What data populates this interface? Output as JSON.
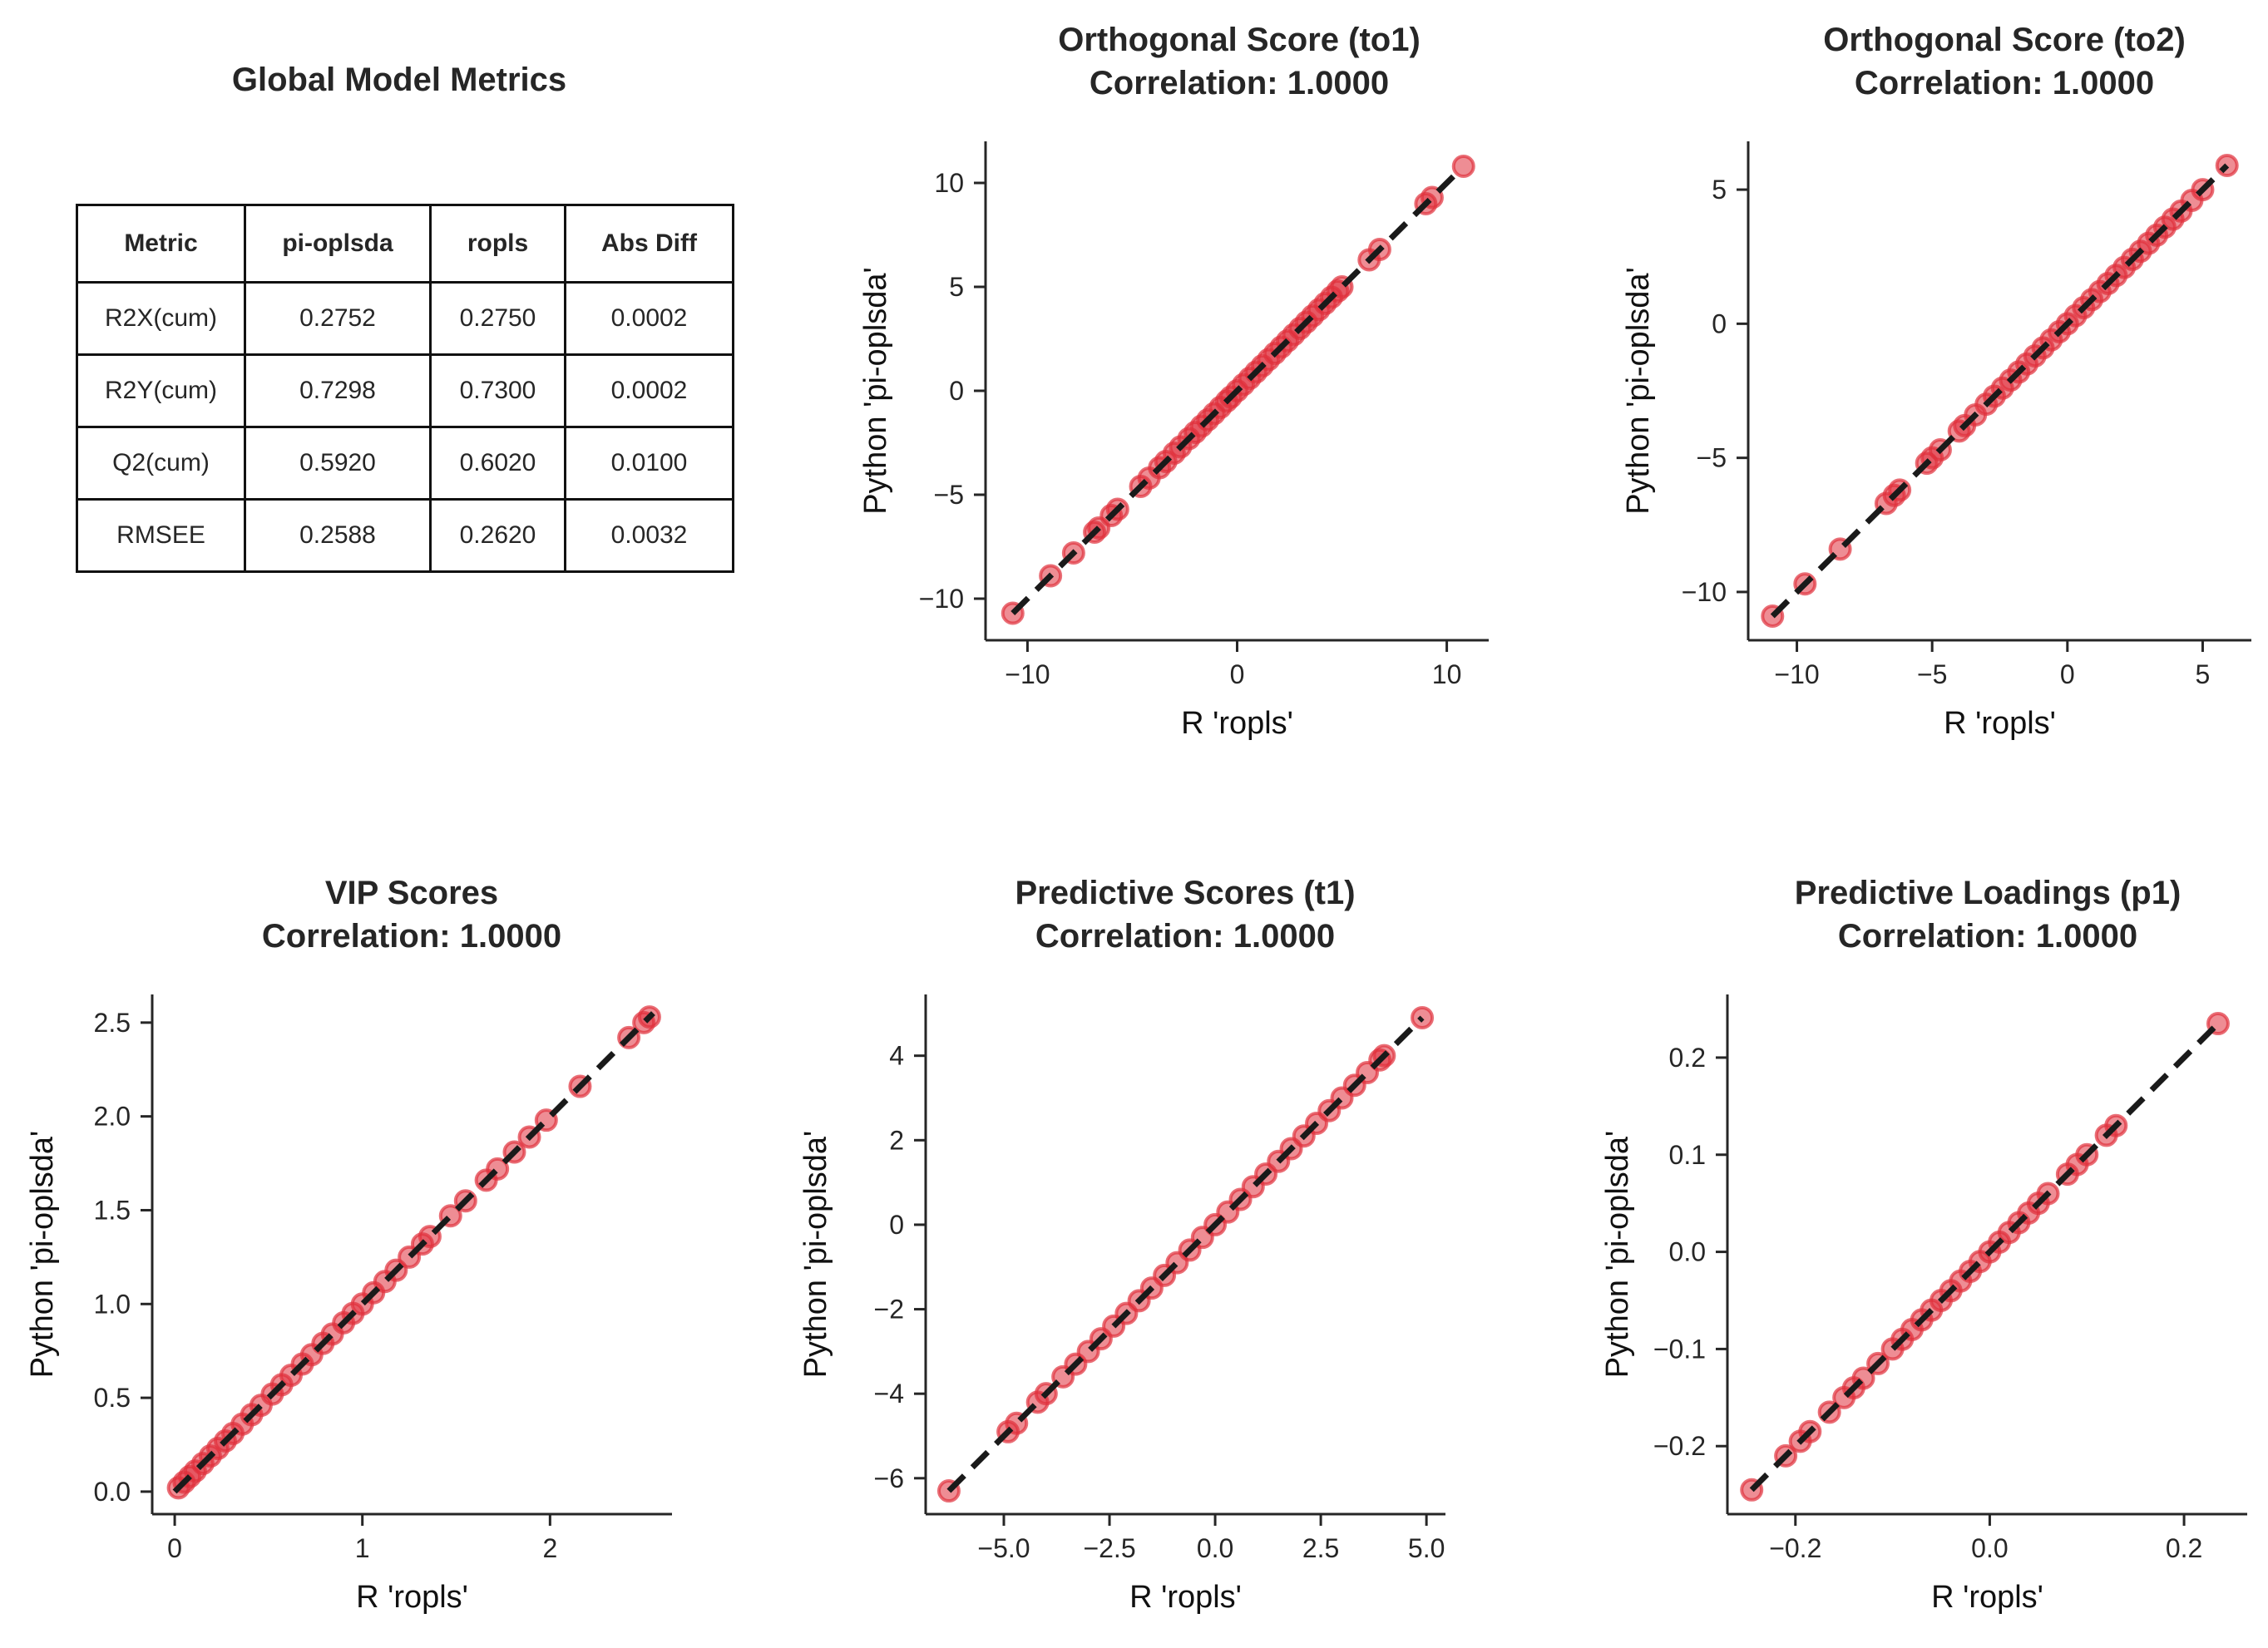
{
  "metrics_table": {
    "title": "Global Model Metrics",
    "columns": [
      "Metric",
      "pi-oplsda",
      "ropls",
      "Abs Diff"
    ],
    "rows": [
      [
        "R2X(cum)",
        "0.2752",
        "0.2750",
        "0.0002"
      ],
      [
        "R2Y(cum)",
        "0.7298",
        "0.7300",
        "0.0002"
      ],
      [
        "Q2(cum)",
        "0.5920",
        "0.6020",
        "0.0100"
      ],
      [
        "RMSEE",
        "0.2588",
        "0.2620",
        "0.0032"
      ]
    ]
  },
  "colors": {
    "points": "#e0303c",
    "identity_line": "#1a1a1a",
    "axes": "#262626"
  },
  "chart_data": [
    {
      "type": "scatter",
      "title": "Orthogonal Score (to1)\nCorrelation: 1.0000",
      "xlabel": "R 'ropls'",
      "ylabel": "Python 'pi-oplsda'",
      "xlim": [
        -12,
        12
      ],
      "ylim": [
        -12,
        12
      ],
      "xticks": [
        -10,
        0,
        10
      ],
      "yticks": [
        -10,
        -5,
        0,
        5,
        10
      ],
      "tick_labels_x": [
        "−10",
        "0",
        "10"
      ],
      "tick_labels_y": [
        "−10",
        "−5",
        "0",
        "5",
        "10"
      ],
      "identity_line": [
        -10.7,
        10.7
      ],
      "points": [
        -10.7,
        -8.9,
        -7.8,
        -6.8,
        -6.6,
        -6.0,
        -5.7,
        -4.6,
        -4.2,
        -3.7,
        -3.4,
        -3.0,
        -2.7,
        -2.3,
        -2.0,
        -1.7,
        -1.4,
        -1.1,
        -0.8,
        -0.5,
        -0.3,
        0.0,
        0.3,
        0.6,
        0.9,
        1.2,
        1.5,
        1.8,
        2.1,
        2.4,
        2.7,
        3.0,
        3.3,
        3.6,
        3.9,
        4.2,
        4.5,
        4.8,
        5.0,
        6.3,
        6.8,
        9.0,
        9.3,
        10.8
      ]
    },
    {
      "type": "scatter",
      "title": "Orthogonal Score (to2)\nCorrelation: 1.0000",
      "xlabel": "R 'ropls'",
      "ylabel": "Python 'pi-oplsda'",
      "xlim": [
        -11.8,
        6.8
      ],
      "ylim": [
        -11.8,
        6.8
      ],
      "xticks": [
        -10,
        -5,
        0,
        5
      ],
      "yticks": [
        -10,
        -5,
        0,
        5
      ],
      "tick_labels_x": [
        "−10",
        "−5",
        "0",
        "5"
      ],
      "tick_labels_y": [
        "−10",
        "−5",
        "0",
        "5"
      ],
      "identity_line": [
        -10.9,
        5.9
      ],
      "points": [
        -10.9,
        -9.7,
        -8.4,
        -6.7,
        -6.4,
        -6.2,
        -5.2,
        -5.0,
        -4.7,
        -4.0,
        -3.8,
        -3.4,
        -3.0,
        -2.7,
        -2.4,
        -2.1,
        -1.8,
        -1.5,
        -1.2,
        -0.9,
        -0.6,
        -0.3,
        0.0,
        0.3,
        0.6,
        0.9,
        1.2,
        1.5,
        1.8,
        2.1,
        2.4,
        2.7,
        3.0,
        3.3,
        3.6,
        3.9,
        4.2,
        4.6,
        5.0,
        5.9
      ]
    },
    {
      "type": "scatter",
      "title": "VIP Scores\nCorrelation: 1.0000",
      "xlabel": "R 'ropls'",
      "ylabel": "Python 'pi-oplsda'",
      "xlim": [
        -0.12,
        2.65
      ],
      "ylim": [
        -0.12,
        2.65
      ],
      "xticks": [
        0,
        1,
        2
      ],
      "yticks": [
        0.0,
        0.5,
        1.0,
        1.5,
        2.0,
        2.5
      ],
      "tick_labels_x": [
        "0",
        "1",
        "2"
      ],
      "tick_labels_y": [
        "0.0",
        "0.5",
        "1.0",
        "1.5",
        "2.0",
        "2.5"
      ],
      "identity_line": [
        0.0,
        2.55
      ],
      "points": [
        0.02,
        0.05,
        0.08,
        0.11,
        0.15,
        0.19,
        0.23,
        0.27,
        0.31,
        0.36,
        0.41,
        0.46,
        0.52,
        0.57,
        0.62,
        0.68,
        0.73,
        0.79,
        0.84,
        0.9,
        0.95,
        1.0,
        1.06,
        1.12,
        1.18,
        1.25,
        1.32,
        1.36,
        1.47,
        1.55,
        1.66,
        1.72,
        1.81,
        1.89,
        1.98,
        2.16,
        2.42,
        2.5,
        2.53
      ]
    },
    {
      "type": "scatter",
      "title": "Predictive Scores (t1)\nCorrelation: 1.0000",
      "xlabel": "R 'ropls'",
      "ylabel": "Python 'pi-oplsda'",
      "xlim": [
        -6.85,
        5.45
      ],
      "ylim": [
        -6.85,
        5.45
      ],
      "xticks": [
        -5.0,
        -2.5,
        0.0,
        2.5,
        5.0
      ],
      "yticks": [
        -6,
        -4,
        -2,
        0,
        2,
        4
      ],
      "tick_labels_x": [
        "−5.0",
        "−2.5",
        "0.0",
        "2.5",
        "5.0"
      ],
      "tick_labels_y": [
        "−6",
        "−4",
        "−2",
        "0",
        "2",
        "4"
      ],
      "identity_line": [
        -6.3,
        4.9
      ],
      "points": [
        -6.3,
        -4.9,
        -4.7,
        -4.2,
        -4.0,
        -3.6,
        -3.3,
        -3.0,
        -2.7,
        -2.4,
        -2.1,
        -1.8,
        -1.5,
        -1.2,
        -0.9,
        -0.6,
        -0.3,
        0.0,
        0.3,
        0.6,
        0.9,
        1.2,
        1.5,
        1.8,
        2.1,
        2.4,
        2.7,
        3.0,
        3.3,
        3.6,
        3.9,
        4.0,
        4.9
      ]
    },
    {
      "type": "scatter",
      "title": "Predictive Loadings (p1)\nCorrelation: 1.0000",
      "xlabel": "R 'ropls'",
      "ylabel": "Python 'pi-oplsda'",
      "xlim": [
        -0.27,
        0.265
      ],
      "ylim": [
        -0.27,
        0.265
      ],
      "xticks": [
        -0.2,
        0.0,
        0.2
      ],
      "yticks": [
        -0.2,
        -0.1,
        0.0,
        0.1,
        0.2
      ],
      "tick_labels_x": [
        "−0.2",
        "0.0",
        "0.2"
      ],
      "tick_labels_y": [
        "−0.2",
        "−0.1",
        "0.0",
        "0.1",
        "0.2"
      ],
      "identity_line": [
        -0.245,
        0.235
      ],
      "points": [
        -0.245,
        -0.21,
        -0.195,
        -0.185,
        -0.165,
        -0.15,
        -0.14,
        -0.13,
        -0.115,
        -0.1,
        -0.09,
        -0.08,
        -0.07,
        -0.06,
        -0.05,
        -0.04,
        -0.03,
        -0.02,
        -0.01,
        0.0,
        0.01,
        0.02,
        0.03,
        0.04,
        0.05,
        0.06,
        0.08,
        0.09,
        0.1,
        0.12,
        0.13,
        0.235
      ]
    }
  ]
}
